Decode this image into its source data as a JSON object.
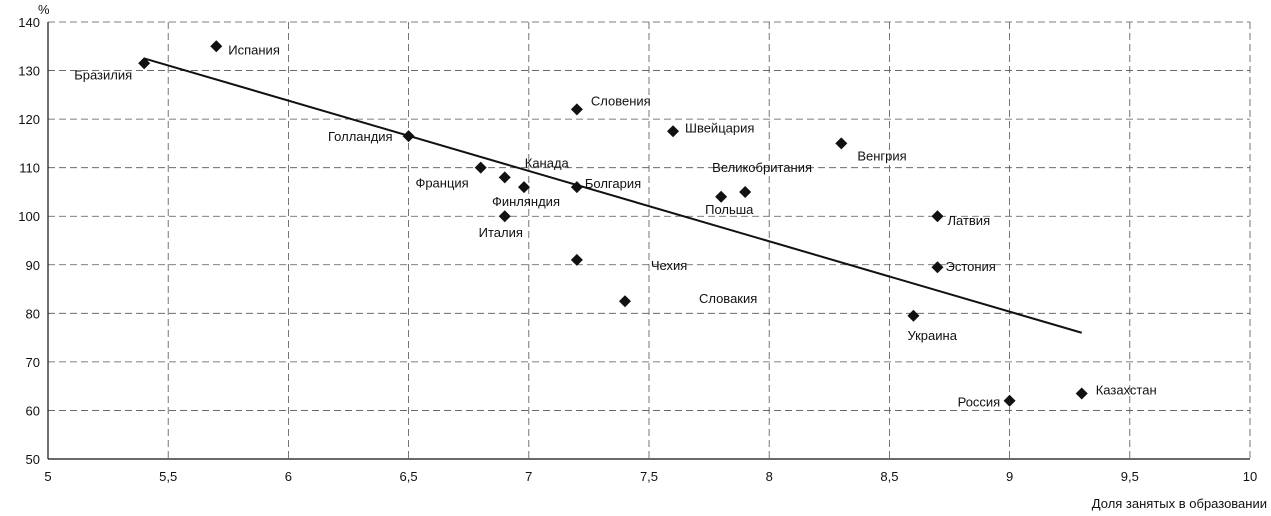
{
  "caption": "",
  "chart_data": {
    "type": "scatter",
    "title": "",
    "xlabel": "Доля занятых в образовании",
    "ylabel": "%",
    "xlim": [
      5,
      10
    ],
    "ylim": [
      50,
      140
    ],
    "x_ticks": [
      "5",
      "5,5",
      "6",
      "6,5",
      "7",
      "7,5",
      "8",
      "8,5",
      "9",
      "9,5",
      "10"
    ],
    "y_ticks": [
      "50",
      "60",
      "70",
      "80",
      "90",
      "100",
      "110",
      "120",
      "130",
      "140"
    ],
    "grid": true,
    "points": [
      {
        "label": "Бразилия",
        "x": 5.4,
        "y": 131.5
      },
      {
        "label": "Испания",
        "x": 5.7,
        "y": 135
      },
      {
        "label": "Голландия",
        "x": 6.5,
        "y": 116.5
      },
      {
        "label": "Франция",
        "x": 6.8,
        "y": 110
      },
      {
        "label": "Канада",
        "x": 6.9,
        "y": 108
      },
      {
        "label": "Финляндия",
        "x": 6.98,
        "y": 106
      },
      {
        "label": "Италия",
        "x": 6.9,
        "y": 100
      },
      {
        "label": "Словения",
        "x": 7.2,
        "y": 122
      },
      {
        "label": "Болгария",
        "x": 7.2,
        "y": 106
      },
      {
        "label": "Чехия",
        "x": 7.2,
        "y": 91
      },
      {
        "label": "Словакия",
        "x": 7.4,
        "y": 82.5
      },
      {
        "label": "Швейцария",
        "x": 7.6,
        "y": 117.5
      },
      {
        "label": "Великобритания",
        "x": 7.9,
        "y": 105
      },
      {
        "label": "Польша",
        "x": 7.8,
        "y": 104
      },
      {
        "label": "Венгрия",
        "x": 8.3,
        "y": 115
      },
      {
        "label": "Латвия",
        "x": 8.7,
        "y": 100
      },
      {
        "label": "Эстония",
        "x": 8.7,
        "y": 89.5
      },
      {
        "label": "Украина",
        "x": 8.6,
        "y": 79.5
      },
      {
        "label": "Россия",
        "x": 9.0,
        "y": 62
      },
      {
        "label": "Казахстан",
        "x": 9.3,
        "y": 63.5
      }
    ],
    "trendline": {
      "x": [
        5.4,
        9.3
      ],
      "y": [
        132.5,
        76
      ]
    }
  }
}
